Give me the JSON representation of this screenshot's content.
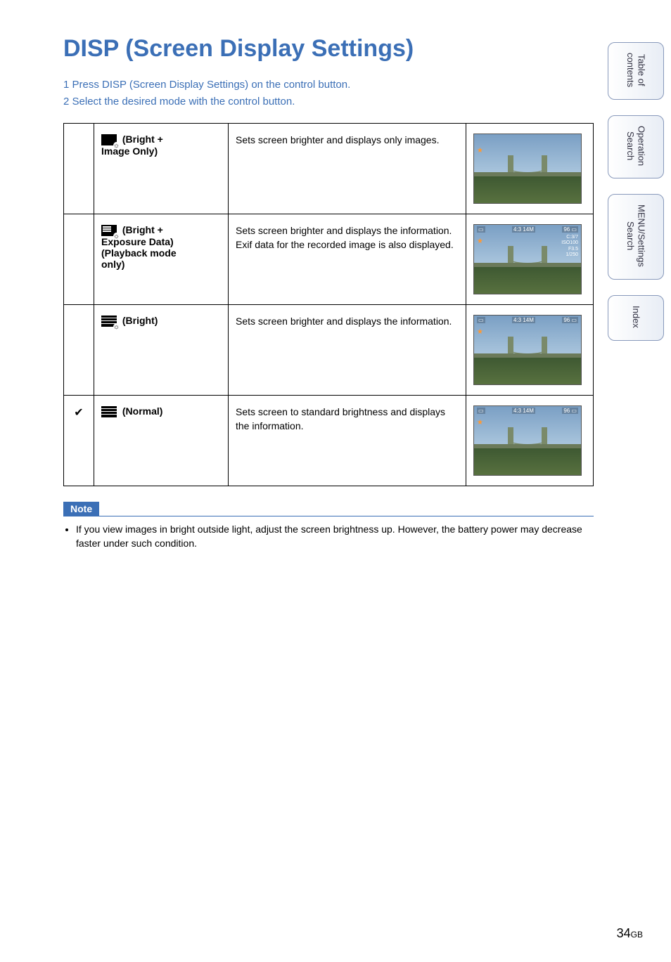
{
  "title": "DISP (Screen Display Settings)",
  "steps": [
    "1  Press DISP (Screen Display Settings) on the control button.",
    "2  Select the desired mode with the control button."
  ],
  "modes": [
    {
      "checked": "",
      "label_line1": "(Bright +",
      "label_line2": "Image Only)",
      "desc": "Sets screen brighter and displays only images.",
      "overlay": false,
      "star": true
    },
    {
      "checked": "",
      "label_line1": "(Bright +",
      "label_line2": "Exposure Data)",
      "label_line3": "(Playback mode",
      "label_line4": "only)",
      "desc": "Sets screen brighter and displays the information.\nExif data for the recorded image is also displayed.",
      "overlay": true,
      "exif": true
    },
    {
      "checked": "",
      "label_line1": "(Bright)",
      "desc": "Sets screen brighter and displays the information.",
      "overlay": true
    },
    {
      "checked": "✔",
      "label_line1": "(Normal)",
      "desc": "Sets screen to standard brightness and displays the information.",
      "overlay": true
    }
  ],
  "overlay_badges": {
    "left": "▭",
    "mid": "4:3 14M",
    "right": "96 ▭"
  },
  "overlay_exif": "C:3/7\nISO100\nF3.5\n1/250",
  "note_label": "Note",
  "note_text": "If you view images in bright outside light, adjust the screen brightness up. However, the battery power may decrease faster under such condition.",
  "sidetabs": [
    "Table of\ncontents",
    "Operation\nSearch",
    "MENU/Settings\nSearch",
    "Index"
  ],
  "page_number": "34",
  "page_suffix": "GB",
  "colors": {
    "heading": "#3b6fb6",
    "tab_border": "#8899bb"
  }
}
